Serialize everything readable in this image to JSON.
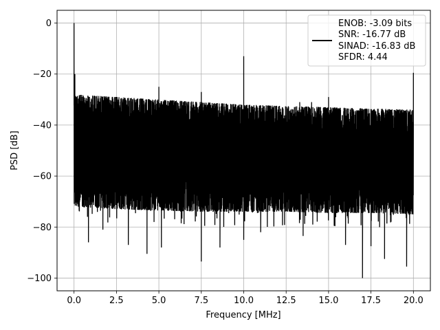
{
  "chart_data": {
    "type": "line",
    "xlabel": "Frequency [MHz]",
    "ylabel": "PSD [dB]",
    "xlim": [
      -1.0,
      21.0
    ],
    "ylim": [
      -105,
      5
    ],
    "xticks": [
      0.0,
      2.5,
      5.0,
      7.5,
      10.0,
      12.5,
      15.0,
      17.5,
      20.0
    ],
    "xtick_labels": [
      "0.0",
      "2.5",
      "5.0",
      "7.5",
      "10.0",
      "12.5",
      "15.0",
      "17.5",
      "20.0"
    ],
    "yticks": [
      0,
      -20,
      -40,
      -60,
      -80,
      -100
    ],
    "ytick_labels": [
      "0",
      "−20",
      "−40",
      "−60",
      "−80",
      "−100"
    ],
    "grid": true,
    "legend_position": "top-right",
    "series": [
      {
        "name": "ENOB: -3.09 bits",
        "color": "#000000",
        "noise_floor": {
          "x": [
            0.0,
            2.5,
            5.0,
            7.5,
            10.0,
            12.5,
            15.0,
            17.5,
            20.0
          ],
          "upper": [
            -28,
            -29,
            -30,
            -31,
            -32,
            -32.5,
            -33,
            -33.5,
            -34
          ],
          "lower": [
            -72,
            -73,
            -73.5,
            -74,
            -74,
            -74,
            -74.5,
            -74.5,
            -75
          ]
        },
        "spikes": [
          {
            "x": 0.0,
            "y": 0
          },
          {
            "x": 0.05,
            "y": -20
          },
          {
            "x": 5.0,
            "y": -25
          },
          {
            "x": 10.0,
            "y": -13
          },
          {
            "x": 7.5,
            "y": -27
          },
          {
            "x": 13.3,
            "y": -31
          },
          {
            "x": 14.0,
            "y": -31
          },
          {
            "x": 15.0,
            "y": -29
          },
          {
            "x": 20.0,
            "y": -19.5
          }
        ],
        "dips": [
          {
            "x": 0.85,
            "y": -86
          },
          {
            "x": 1.7,
            "y": -81
          },
          {
            "x": 3.2,
            "y": -87
          },
          {
            "x": 4.3,
            "y": -90.5
          },
          {
            "x": 5.15,
            "y": -88
          },
          {
            "x": 7.5,
            "y": -93.5
          },
          {
            "x": 8.6,
            "y": -88
          },
          {
            "x": 10.0,
            "y": -85
          },
          {
            "x": 11.0,
            "y": -82
          },
          {
            "x": 13.5,
            "y": -83.5
          },
          {
            "x": 16.0,
            "y": -87
          },
          {
            "x": 17.0,
            "y": -100
          },
          {
            "x": 17.5,
            "y": -87.5
          },
          {
            "x": 18.3,
            "y": -92.5
          },
          {
            "x": 19.6,
            "y": -95.5
          }
        ]
      }
    ],
    "legend": {
      "lines": [
        "ENOB: -3.09 bits",
        "SNR: -16.77 dB",
        "SINAD: -16.83 dB",
        "SFDR: 4.44"
      ]
    }
  }
}
